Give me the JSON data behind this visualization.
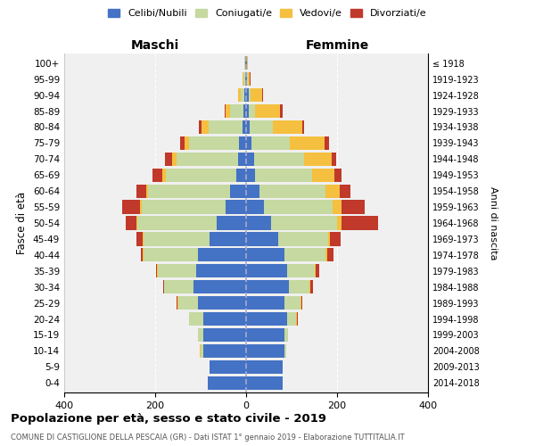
{
  "age_groups": [
    "0-4",
    "5-9",
    "10-14",
    "15-19",
    "20-24",
    "25-29",
    "30-34",
    "35-39",
    "40-44",
    "45-49",
    "50-54",
    "55-59",
    "60-64",
    "65-69",
    "70-74",
    "75-79",
    "80-84",
    "85-89",
    "90-94",
    "95-99",
    "100+"
  ],
  "birth_years": [
    "2014-2018",
    "2009-2013",
    "2004-2008",
    "1999-2003",
    "1994-1998",
    "1989-1993",
    "1984-1988",
    "1979-1983",
    "1974-1978",
    "1969-1973",
    "1964-1968",
    "1959-1963",
    "1954-1958",
    "1949-1953",
    "1944-1948",
    "1939-1943",
    "1934-1938",
    "1929-1933",
    "1924-1928",
    "1919-1923",
    "≤ 1918"
  ],
  "males": {
    "celibi": [
      85,
      80,
      95,
      95,
      95,
      105,
      115,
      110,
      105,
      80,
      65,
      45,
      35,
      22,
      18,
      15,
      8,
      5,
      3,
      2,
      2
    ],
    "coniugati": [
      0,
      0,
      5,
      10,
      30,
      45,
      65,
      85,
      120,
      145,
      175,
      185,
      180,
      155,
      135,
      110,
      75,
      30,
      8,
      3,
      1
    ],
    "vedovi": [
      0,
      0,
      1,
      0,
      1,
      1,
      1,
      1,
      2,
      2,
      2,
      3,
      5,
      8,
      10,
      10,
      15,
      10,
      6,
      2,
      0
    ],
    "divorziati": [
      0,
      0,
      0,
      0,
      0,
      1,
      2,
      3,
      5,
      15,
      22,
      40,
      22,
      20,
      15,
      10,
      5,
      2,
      0,
      0,
      0
    ]
  },
  "females": {
    "nubili": [
      80,
      80,
      85,
      85,
      90,
      85,
      95,
      90,
      85,
      70,
      55,
      40,
      30,
      20,
      18,
      12,
      8,
      5,
      5,
      2,
      2
    ],
    "coniugate": [
      0,
      0,
      4,
      8,
      20,
      35,
      45,
      60,
      90,
      110,
      145,
      150,
      145,
      125,
      110,
      85,
      50,
      15,
      5,
      1,
      0
    ],
    "vedove": [
      0,
      0,
      0,
      0,
      1,
      1,
      2,
      2,
      3,
      5,
      10,
      20,
      30,
      50,
      60,
      75,
      65,
      55,
      25,
      5,
      1
    ],
    "divorziate": [
      0,
      0,
      0,
      0,
      2,
      3,
      5,
      8,
      15,
      22,
      80,
      50,
      25,
      15,
      10,
      10,
      5,
      5,
      2,
      2,
      0
    ]
  },
  "colors": {
    "celibi": "#4472C4",
    "coniugati": "#C5D9A0",
    "vedovi": "#F5C040",
    "divorziati": "#C0392B"
  },
  "xlim": 400,
  "title": "Popolazione per età, sesso e stato civile - 2019",
  "subtitle": "COMUNE DI CASTIGLIONE DELLA PESCAIA (GR) - Dati ISTAT 1° gennaio 2019 - Elaborazione TUTTITALIA.IT",
  "ylabel": "Fasce di età",
  "ylabel_right": "Anni di nascita",
  "label_maschi": "Maschi",
  "label_femmine": "Femmine",
  "legend_labels": [
    "Celibi/Nubili",
    "Coniugati/e",
    "Vedovi/e",
    "Divorziati/e"
  ],
  "bg_color": "#f0f0f0"
}
